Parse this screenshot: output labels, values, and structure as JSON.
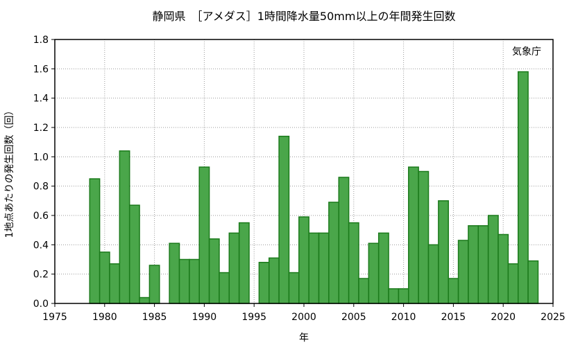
{
  "chart_data": {
    "type": "bar",
    "title": "静岡県　［アメダス］1時間降水量50mm以上の年間発生回数",
    "source_label": "気象庁",
    "xlabel": "年",
    "ylabel": "1地点あたりの発生回数（回）",
    "xlim": [
      1975,
      2025
    ],
    "ylim": [
      0,
      1.8
    ],
    "x_ticks": [
      "1975",
      "1980",
      "1985",
      "1990",
      "1995",
      "2000",
      "2005",
      "2010",
      "2015",
      "2020",
      "2025"
    ],
    "y_ticks": [
      "0.0",
      "0.2",
      "0.4",
      "0.6",
      "0.8",
      "1.0",
      "1.2",
      "1.4",
      "1.6",
      "1.8"
    ],
    "grid": true,
    "colors": {
      "bar_fill": "#4aa64a",
      "bar_edge": "#1b7a1b"
    },
    "x": [
      1979,
      1980,
      1981,
      1982,
      1983,
      1984,
      1985,
      1986,
      1987,
      1988,
      1989,
      1990,
      1991,
      1992,
      1993,
      1994,
      1995,
      1996,
      1997,
      1998,
      1999,
      2000,
      2001,
      2002,
      2003,
      2004,
      2005,
      2006,
      2007,
      2008,
      2009,
      2010,
      2011,
      2012,
      2013,
      2014,
      2015,
      2016,
      2017,
      2018,
      2019,
      2020,
      2021,
      2022,
      2023
    ],
    "values": [
      0.85,
      0.35,
      0.27,
      1.04,
      0.67,
      0.04,
      0.26,
      0,
      0.41,
      0.3,
      0.3,
      0.93,
      0.44,
      0.21,
      0.48,
      0.55,
      0,
      0.28,
      0.31,
      1.14,
      0.21,
      0.59,
      0.48,
      0.48,
      0.69,
      0.86,
      0.55,
      0.17,
      0.41,
      0.48,
      0.1,
      0.1,
      0.93,
      0.9,
      0.4,
      0.7,
      0.17,
      0.43,
      0.53,
      0.53,
      0.6,
      0.47,
      0.27,
      1.58,
      0.29
    ]
  }
}
